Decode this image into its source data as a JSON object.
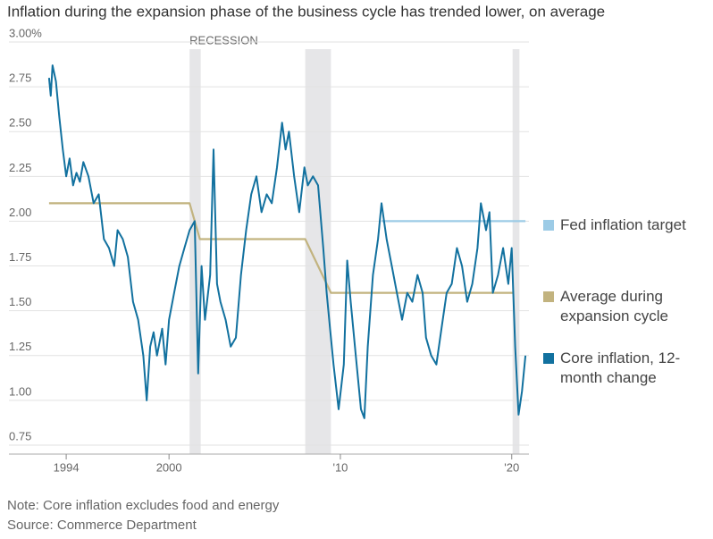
{
  "chart_data": {
    "type": "line",
    "title": "Inflation during the expansion phase of the business cycle has trended lower, on average",
    "recession_label": "RECESSION",
    "recessions": [
      [
        2001.2,
        2001.85
      ],
      [
        2007.95,
        2009.45
      ],
      [
        2020.05,
        2020.45
      ]
    ],
    "xlim": [
      1992.9,
      2020.9
    ],
    "xticks": [
      1994,
      2000,
      {
        "value": 2010,
        "label": "'10"
      },
      {
        "value": 2020,
        "label": "'20"
      }
    ],
    "ylim": [
      0.7,
      3.0
    ],
    "yticks": [
      {
        "value": 3.0,
        "label": "3.00%"
      },
      2.75,
      {
        "value": 2.5,
        "label": "2.50"
      },
      2.25,
      {
        "value": 2.0,
        "label": "2.00"
      },
      1.75,
      {
        "value": 1.5,
        "label": "1.50"
      },
      1.25,
      {
        "value": 1.0,
        "label": "1.00"
      },
      0.75
    ],
    "grid": true,
    "legend": "right",
    "series": [
      {
        "name": "Fed inflation target",
        "color": "#9ccbe6",
        "x": [
          2012.4,
          2020.8
        ],
        "values": [
          2.0,
          2.0
        ]
      },
      {
        "name": "Average during expansion cycle",
        "color": "#c2b37f",
        "x": [
          1993.0,
          2001.2,
          2001.8,
          2007.95,
          2009.45,
          2020.05
        ],
        "values": [
          2.1,
          2.1,
          1.9,
          1.9,
          1.6,
          1.6
        ]
      },
      {
        "name": "Core inflation, 12-month change",
        "color": "#12719f",
        "x": [
          1993.0,
          1993.1,
          1993.2,
          1993.4,
          1993.6,
          1993.8,
          1994.0,
          1994.2,
          1994.4,
          1994.6,
          1994.8,
          1995.0,
          1995.3,
          1995.6,
          1995.9,
          1996.2,
          1996.5,
          1996.8,
          1997.0,
          1997.3,
          1997.6,
          1997.9,
          1998.2,
          1998.5,
          1998.7,
          1998.9,
          1999.1,
          1999.3,
          1999.6,
          1999.8,
          2000.0,
          2000.3,
          2000.6,
          2000.9,
          2001.2,
          2001.5,
          2001.7,
          2001.9,
          2002.1,
          2002.4,
          2002.6,
          2002.8,
          2003.0,
          2003.3,
          2003.6,
          2003.9,
          2004.2,
          2004.5,
          2004.8,
          2005.1,
          2005.4,
          2005.7,
          2006.0,
          2006.3,
          2006.6,
          2006.8,
          2007.0,
          2007.3,
          2007.6,
          2007.9,
          2008.1,
          2008.4,
          2008.7,
          2009.0,
          2009.2,
          2009.4,
          2009.6,
          2009.9,
          2010.2,
          2010.4,
          2010.6,
          2010.9,
          2011.2,
          2011.4,
          2011.6,
          2011.9,
          2012.2,
          2012.4,
          2012.7,
          2013.0,
          2013.3,
          2013.6,
          2013.9,
          2014.2,
          2014.5,
          2014.8,
          2015.0,
          2015.3,
          2015.6,
          2015.9,
          2016.2,
          2016.5,
          2016.8,
          2017.1,
          2017.4,
          2017.7,
          2018.0,
          2018.2,
          2018.5,
          2018.7,
          2018.9,
          2019.2,
          2019.5,
          2019.8,
          2020.0,
          2020.2,
          2020.4,
          2020.6,
          2020.8
        ],
        "values": [
          2.8,
          2.7,
          2.87,
          2.78,
          2.58,
          2.4,
          2.25,
          2.35,
          2.2,
          2.27,
          2.22,
          2.33,
          2.25,
          2.1,
          2.15,
          1.9,
          1.85,
          1.75,
          1.95,
          1.9,
          1.8,
          1.55,
          1.45,
          1.25,
          1.0,
          1.3,
          1.38,
          1.25,
          1.4,
          1.2,
          1.45,
          1.6,
          1.75,
          1.85,
          1.95,
          2.0,
          1.15,
          1.75,
          1.45,
          1.7,
          2.4,
          1.65,
          1.55,
          1.45,
          1.3,
          1.35,
          1.7,
          1.95,
          2.15,
          2.25,
          2.05,
          2.15,
          2.1,
          2.3,
          2.55,
          2.4,
          2.5,
          2.25,
          2.05,
          2.3,
          2.2,
          2.25,
          2.2,
          1.85,
          1.6,
          1.4,
          1.2,
          0.95,
          1.2,
          1.78,
          1.55,
          1.25,
          0.95,
          0.9,
          1.3,
          1.7,
          1.9,
          2.1,
          1.9,
          1.75,
          1.6,
          1.45,
          1.6,
          1.55,
          1.7,
          1.6,
          1.35,
          1.25,
          1.2,
          1.4,
          1.6,
          1.65,
          1.85,
          1.75,
          1.55,
          1.65,
          1.85,
          2.1,
          1.95,
          2.05,
          1.6,
          1.7,
          1.85,
          1.65,
          1.85,
          1.3,
          0.92,
          1.05,
          1.25
        ]
      }
    ],
    "notes": [
      "Note: Core inflation excludes food and energy",
      "Source: Commerce Department"
    ]
  }
}
